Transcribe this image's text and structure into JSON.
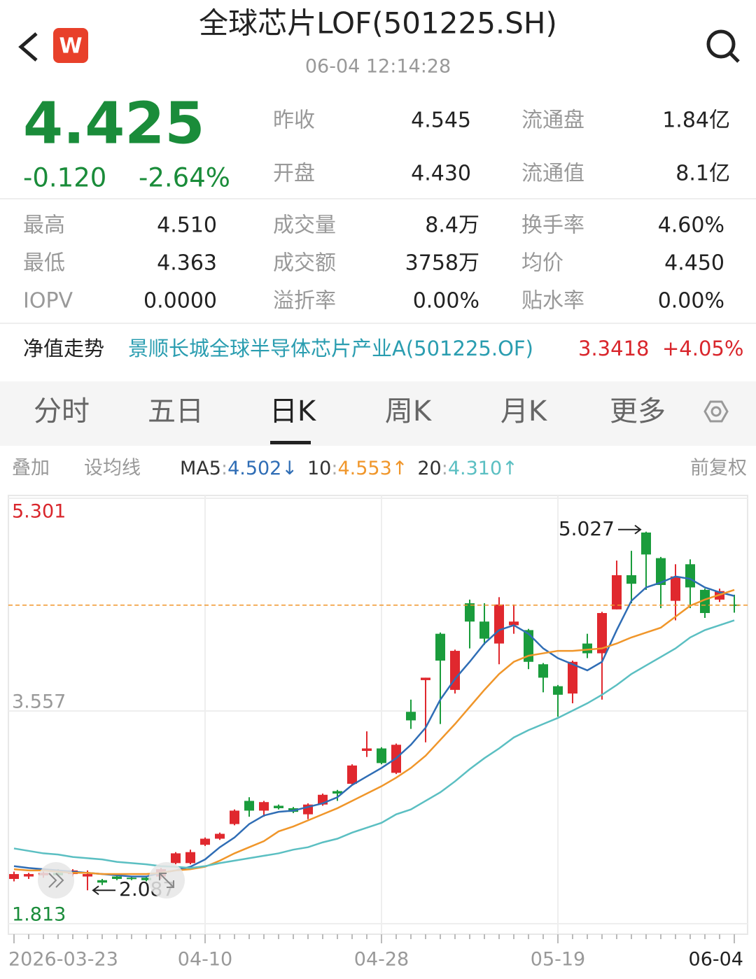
{
  "header": {
    "title": "全球芯片LOF(501225.SH)",
    "time": "06-04 12:14:28",
    "badge": "W"
  },
  "quote": {
    "price": "4.425",
    "change": "-0.120",
    "change_pct": "-2.64%"
  },
  "summary": [
    [
      "昨收",
      "4.545",
      "流通盘",
      "1.84亿"
    ],
    [
      "开盘",
      "4.430",
      "流通值",
      "8.1亿"
    ]
  ],
  "details": [
    [
      "最高",
      "4.510",
      "成交量",
      "8.4万",
      "换手率",
      "4.60%"
    ],
    [
      "最低",
      "4.363",
      "成交额",
      "3758万",
      "均价",
      "4.450"
    ],
    [
      "IOPV",
      "0.0000",
      "溢折率",
      "0.00%",
      "贴水率",
      "0.00%"
    ]
  ],
  "nav": {
    "label": "净值走势",
    "fund": "景顺长城全球半导体芯片产业A(501225.OF)",
    "value": "3.3418",
    "change": "+4.05%"
  },
  "tabs": [
    "分时",
    "五日",
    "日K",
    "周K",
    "月K",
    "更多"
  ],
  "toolbar": {
    "left": [
      "叠加",
      "设均线"
    ],
    "right": "前复权",
    "separator": ":"
  },
  "chart_data": {
    "type": "candlestick",
    "categories": [
      "2026-03-23",
      null,
      null,
      null,
      null,
      null,
      null,
      null,
      null,
      null,
      null,
      null,
      null,
      "04-10",
      null,
      null,
      null,
      null,
      null,
      null,
      null,
      null,
      null,
      null,
      null,
      "04-28",
      null,
      null,
      null,
      null,
      null,
      null,
      null,
      null,
      null,
      null,
      null,
      "05-19",
      null,
      null,
      null,
      null,
      null,
      null,
      null,
      null,
      null,
      null,
      null,
      "06-04"
    ],
    "open": [
      2.18,
      2.2,
      2.21,
      2.23,
      2.22,
      2.2,
      2.17,
      2.2,
      2.19,
      2.19,
      2.2,
      2.31,
      2.31,
      2.46,
      2.51,
      2.63,
      2.82,
      2.74,
      2.78,
      2.76,
      2.71,
      2.79,
      2.9,
      2.96,
      3.23,
      3.25,
      3.05,
      3.55,
      3.81,
      4.19,
      3.73,
      4.44,
      4.29,
      4.11,
      4.26,
      4.22,
      3.94,
      3.76,
      3.7,
      4.11,
      4.03,
      4.39,
      4.67,
      5.02,
      4.81,
      4.46,
      4.76,
      4.55,
      4.47,
      4.43
    ],
    "high": [
      2.24,
      2.23,
      2.24,
      2.26,
      2.26,
      2.25,
      2.18,
      2.21,
      2.2,
      2.2,
      2.27,
      2.4,
      2.42,
      2.52,
      2.56,
      2.75,
      2.85,
      2.82,
      2.79,
      2.77,
      2.8,
      2.88,
      2.91,
      3.12,
      3.39,
      3.26,
      3.29,
      3.65,
      3.83,
      4.2,
      4.06,
      4.47,
      4.44,
      4.49,
      4.43,
      4.23,
      3.95,
      3.77,
      3.97,
      4.19,
      4.37,
      4.79,
      4.87,
      5.027,
      4.82,
      4.76,
      4.8,
      4.56,
      4.56,
      4.51
    ],
    "low": [
      2.16,
      2.18,
      2.19,
      2.2,
      2.2,
      2.087,
      2.13,
      2.17,
      2.17,
      2.16,
      2.18,
      2.3,
      2.3,
      2.45,
      2.5,
      2.62,
      2.69,
      2.69,
      2.75,
      2.72,
      2.67,
      2.78,
      2.82,
      2.95,
      3.18,
      3.12,
      3.04,
      3.41,
      3.3,
      3.45,
      3.7,
      4.07,
      4.1,
      3.94,
      4.19,
      3.9,
      3.71,
      3.51,
      3.62,
      3.99,
      3.65,
      4.39,
      4.44,
      4.55,
      4.4,
      4.3,
      4.4,
      4.32,
      4.45,
      4.363
    ],
    "close": [
      2.22,
      2.22,
      2.23,
      2.21,
      2.25,
      2.22,
      2.15,
      2.18,
      2.18,
      2.17,
      2.26,
      2.39,
      2.4,
      2.51,
      2.55,
      2.74,
      2.74,
      2.81,
      2.76,
      2.73,
      2.79,
      2.87,
      2.88,
      3.11,
      3.25,
      3.13,
      3.28,
      3.48,
      3.83,
      3.97,
      4.05,
      4.29,
      4.15,
      4.43,
      4.29,
      3.96,
      3.83,
      3.69,
      3.96,
      4.03,
      4.36,
      4.67,
      4.6,
      4.84,
      4.59,
      4.66,
      4.57,
      4.36,
      4.54,
      4.425
    ],
    "up_color": "#e0282e",
    "down_color": "#1a9c3c",
    "series": [
      {
        "name": "MA5",
        "color": "#2f6db5",
        "legend_value": "4.502",
        "trend": "↓",
        "values": [
          2.285,
          2.27,
          2.26,
          2.25,
          2.24,
          2.23,
          2.22,
          2.21,
          2.2,
          2.2,
          2.23,
          2.25,
          2.28,
          2.34,
          2.44,
          2.52,
          2.63,
          2.7,
          2.73,
          2.74,
          2.77,
          2.8,
          2.85,
          2.95,
          3.02,
          3.09,
          3.17,
          3.28,
          3.42,
          3.65,
          3.82,
          3.96,
          4.11,
          4.22,
          4.26,
          4.19,
          4.07,
          3.99,
          3.94,
          3.89,
          3.96,
          4.22,
          4.46,
          4.57,
          4.61,
          4.66,
          4.64,
          4.57,
          4.53,
          4.5
        ]
      },
      {
        "name": "10",
        "color": "#f0962a",
        "legend_value": "4.553",
        "trend": "↑",
        "values": [
          2.26,
          2.25,
          2.25,
          2.24,
          2.23,
          2.23,
          2.22,
          2.22,
          2.22,
          2.22,
          2.23,
          2.25,
          2.26,
          2.28,
          2.33,
          2.39,
          2.44,
          2.49,
          2.57,
          2.61,
          2.66,
          2.71,
          2.76,
          2.82,
          2.88,
          2.94,
          3.01,
          3.09,
          3.19,
          3.32,
          3.45,
          3.59,
          3.73,
          3.86,
          3.96,
          4.01,
          4.03,
          4.05,
          4.05,
          4.06,
          4.07,
          4.11,
          4.16,
          4.2,
          4.24,
          4.33,
          4.42,
          4.47,
          4.51,
          4.55
        ]
      },
      {
        "name": "20",
        "color": "#5bbfc2",
        "legend_value": "4.310",
        "trend": "↑",
        "values": [
          2.43,
          2.41,
          2.39,
          2.38,
          2.36,
          2.35,
          2.34,
          2.32,
          2.31,
          2.3,
          2.285,
          2.28,
          2.27,
          2.285,
          2.31,
          2.33,
          2.35,
          2.37,
          2.39,
          2.42,
          2.44,
          2.48,
          2.51,
          2.56,
          2.6,
          2.64,
          2.71,
          2.75,
          2.82,
          2.89,
          2.98,
          3.08,
          3.17,
          3.25,
          3.34,
          3.4,
          3.45,
          3.5,
          3.56,
          3.62,
          3.69,
          3.77,
          3.86,
          3.93,
          4.0,
          4.07,
          4.16,
          4.22,
          4.26,
          4.3
        ]
      }
    ],
    "ylim": [
      1.813,
      5.301
    ],
    "yticks": [
      5.301,
      3.557,
      1.813
    ],
    "high_label": 5.027,
    "low_label": 2.087
  }
}
